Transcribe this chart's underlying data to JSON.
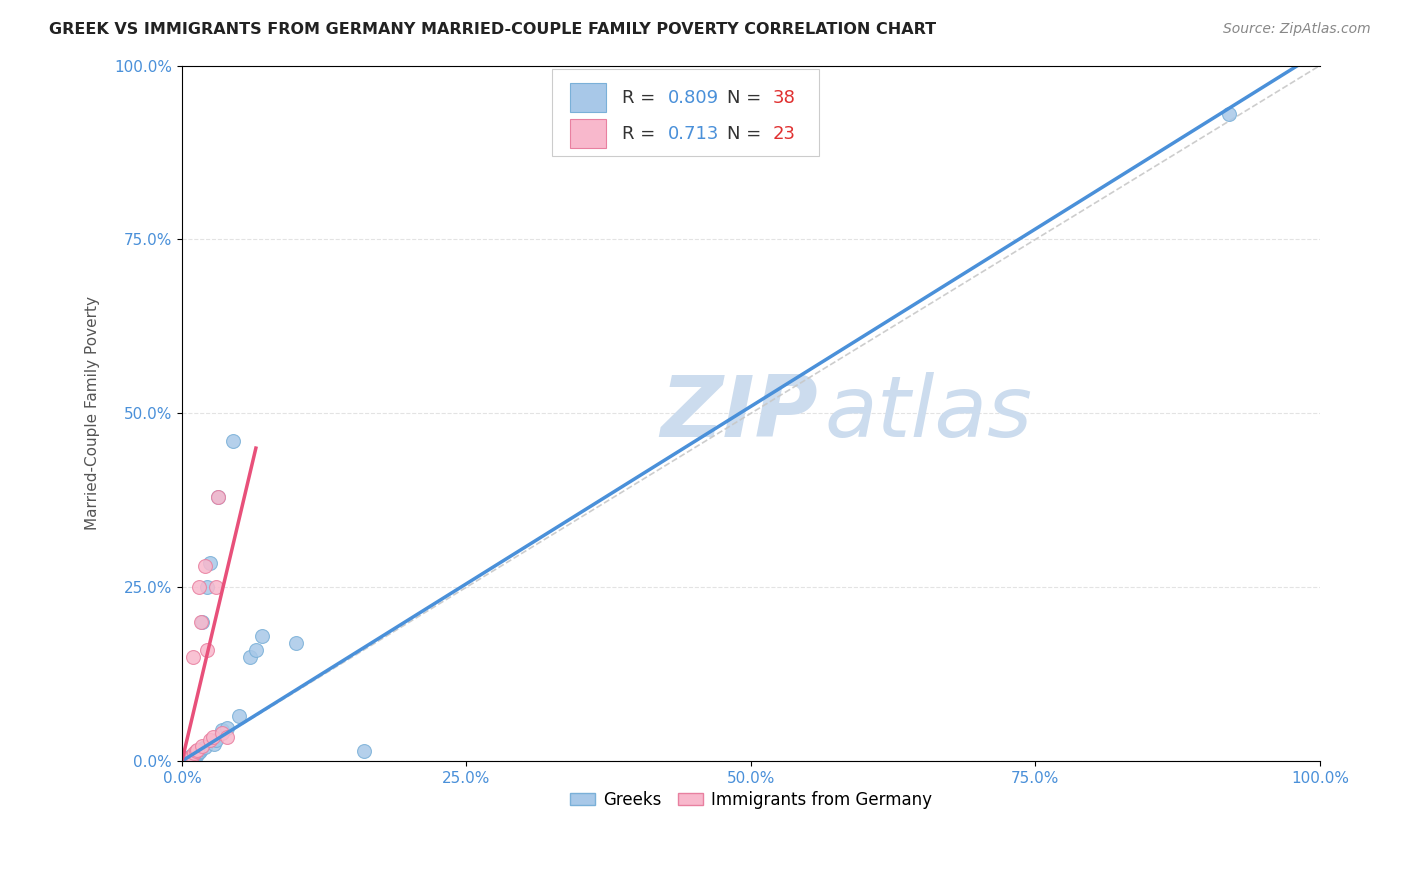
{
  "title": "GREEK VS IMMIGRANTS FROM GERMANY MARRIED-COUPLE FAMILY POVERTY CORRELATION CHART",
  "source": "Source: ZipAtlas.com",
  "ylabel": "Married-Couple Family Poverty",
  "xlim": [
    0,
    1.0
  ],
  "ylim": [
    0,
    1.0
  ],
  "xticks": [
    0.0,
    0.25,
    0.5,
    0.75,
    1.0
  ],
  "yticks": [
    0.0,
    0.25,
    0.5,
    0.75,
    1.0
  ],
  "greek_color": "#a8c8e8",
  "greek_edge_color": "#7ab0d8",
  "germany_color": "#f8b8cc",
  "germany_edge_color": "#e880a0",
  "greek_line_color": "#4a90d9",
  "germany_line_color": "#e8507a",
  "diag_line_color": "#c8c8c8",
  "watermark_color": "#ccdcee",
  "r_greek": 0.809,
  "n_greek": 38,
  "r_germany": 0.713,
  "n_germany": 23,
  "legend_r_color": "#4a90d9",
  "legend_n_color": "#e03030",
  "greek_scatter_x": [
    0.002,
    0.003,
    0.004,
    0.004,
    0.005,
    0.006,
    0.006,
    0.007,
    0.007,
    0.008,
    0.008,
    0.009,
    0.01,
    0.01,
    0.011,
    0.012,
    0.013,
    0.014,
    0.015,
    0.016,
    0.017,
    0.018,
    0.02,
    0.022,
    0.025,
    0.028,
    0.03,
    0.032,
    0.035,
    0.04,
    0.045,
    0.05,
    0.06,
    0.065,
    0.07,
    0.1,
    0.16,
    0.92
  ],
  "greek_scatter_y": [
    0.001,
    0.002,
    0.003,
    0.002,
    0.004,
    0.003,
    0.005,
    0.004,
    0.006,
    0.005,
    0.007,
    0.006,
    0.007,
    0.008,
    0.009,
    0.008,
    0.01,
    0.012,
    0.013,
    0.015,
    0.018,
    0.2,
    0.02,
    0.25,
    0.285,
    0.025,
    0.03,
    0.38,
    0.045,
    0.048,
    0.46,
    0.065,
    0.15,
    0.16,
    0.18,
    0.17,
    0.015,
    0.93
  ],
  "germany_scatter_x": [
    0.001,
    0.003,
    0.004,
    0.005,
    0.006,
    0.007,
    0.008,
    0.009,
    0.01,
    0.011,
    0.012,
    0.013,
    0.015,
    0.017,
    0.018,
    0.02,
    0.022,
    0.025,
    0.027,
    0.03,
    0.032,
    0.035,
    0.04
  ],
  "germany_scatter_y": [
    0.001,
    0.002,
    0.003,
    0.003,
    0.005,
    0.004,
    0.006,
    0.008,
    0.15,
    0.012,
    0.014,
    0.016,
    0.25,
    0.2,
    0.022,
    0.28,
    0.16,
    0.03,
    0.035,
    0.25,
    0.38,
    0.04,
    0.035
  ],
  "greek_line_x": [
    0.0,
    1.0
  ],
  "greek_line_y": [
    0.0,
    1.02
  ],
  "germany_line_x": [
    0.0,
    0.065
  ],
  "germany_line_y": [
    0.0,
    0.45
  ],
  "marker_size": 100,
  "background_color": "#ffffff",
  "grid_color": "#e0e0e0"
}
